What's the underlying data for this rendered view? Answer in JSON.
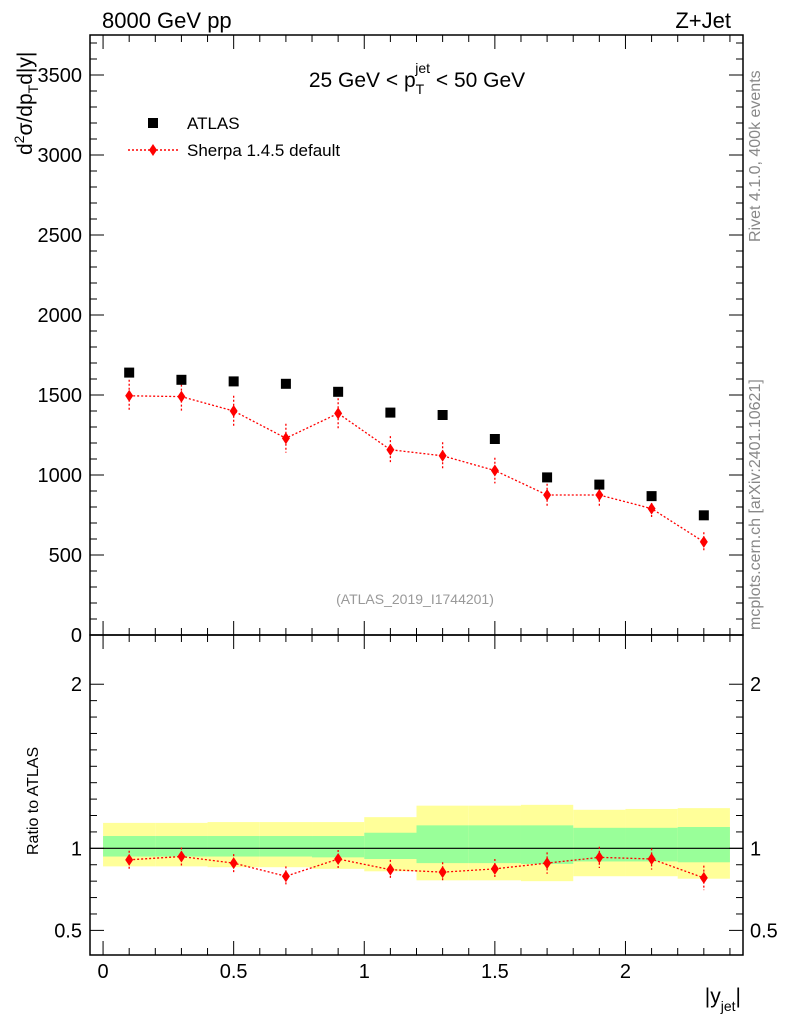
{
  "header": {
    "left_title": "8000 GeV pp",
    "right_title": "Z+Jet"
  },
  "side_labels": {
    "rivet": "Rivet 4.1.0,  400k events",
    "mcplots": "mcplots.cern.ch [arXiv:2401.10621]"
  },
  "chart_data": [
    {
      "type": "scatter",
      "panel": "main",
      "title": "25 GeV < p_T^jet < 50 GeV",
      "title_parts": {
        "pre": "25 GeV < p",
        "sub": "T",
        "sup": "jet",
        "post": " < 50 GeV"
      },
      "ylabel": "d²σ/dp_T d|y|",
      "ylabel_parts": {
        "d": "d",
        "sup2": "2",
        "sigma": "σ/dp",
        "sub": "T",
        "rest": "d|y|"
      },
      "xlabel": "|y_jet|",
      "xlim": [
        -0.05,
        2.45
      ],
      "ylim": [
        0,
        3750
      ],
      "yticks": [
        0,
        500,
        1000,
        1500,
        2000,
        2500,
        3000,
        3500
      ],
      "ytick_labels": [
        "0",
        "500",
        "1000",
        "1500",
        "2000",
        "2500",
        "3000",
        "3500"
      ],
      "watermark": "(ATLAS_2019_I1744201)",
      "legend": {
        "position": "top-left",
        "entries": [
          "ATLAS",
          "Sherpa 1.4.5 default"
        ]
      },
      "series": [
        {
          "name": "ATLAS",
          "marker": "square",
          "color": "#000000",
          "x": [
            0.1,
            0.3,
            0.5,
            0.7,
            0.9,
            1.1,
            1.3,
            1.5,
            1.7,
            1.9,
            2.1,
            2.3
          ],
          "y": [
            1640,
            1595,
            1585,
            1570,
            1520,
            1390,
            1375,
            1225,
            985,
            940,
            868,
            748
          ]
        },
        {
          "name": "Sherpa 1.4.5 default",
          "marker": "diamond",
          "line": "dotted",
          "color": "#ff0000",
          "x": [
            0.1,
            0.3,
            0.5,
            0.7,
            0.9,
            1.1,
            1.3,
            1.5,
            1.7,
            1.9,
            2.1,
            2.3
          ],
          "y": [
            1495,
            1490,
            1400,
            1230,
            1385,
            1158,
            1120,
            1028,
            875,
            875,
            790,
            582
          ],
          "yerr": [
            100,
            100,
            95,
            90,
            95,
            85,
            85,
            80,
            70,
            70,
            60,
            60
          ]
        }
      ]
    },
    {
      "type": "scatter",
      "panel": "ratio",
      "ylabel": "Ratio to ATLAS",
      "xlabel": "|y_jet|",
      "xlabel_parts": {
        "pre": "|y",
        "sub": "jet",
        "post": "|"
      },
      "xlim": [
        -0.05,
        2.45
      ],
      "ylim": [
        0.35,
        2.3
      ],
      "yticks": [
        0.5,
        1,
        2
      ],
      "ytick_labels": [
        "0.5",
        "1",
        "2"
      ],
      "xticks": [
        0,
        0.5,
        1,
        1.5,
        2
      ],
      "xtick_labels": [
        "0",
        "0.5",
        "1",
        "1.5",
        "2"
      ],
      "bands": {
        "edges": [
          0,
          0.2,
          0.4,
          0.6,
          0.8,
          1.0,
          1.2,
          1.4,
          1.6,
          1.8,
          2.0,
          2.2,
          2.4
        ],
        "yellow_lo": [
          0.89,
          0.89,
          0.885,
          0.885,
          0.875,
          0.86,
          0.805,
          0.805,
          0.8,
          0.83,
          0.83,
          0.815
        ],
        "yellow_hi": [
          1.155,
          1.155,
          1.16,
          1.16,
          1.16,
          1.19,
          1.26,
          1.26,
          1.265,
          1.235,
          1.24,
          1.245
        ],
        "green_lo": [
          0.95,
          0.95,
          0.95,
          0.95,
          0.945,
          0.935,
          0.91,
          0.91,
          0.905,
          0.92,
          0.92,
          0.915
        ],
        "green_hi": [
          1.075,
          1.075,
          1.075,
          1.075,
          1.075,
          1.095,
          1.14,
          1.14,
          1.14,
          1.125,
          1.125,
          1.13
        ]
      },
      "series": [
        {
          "name": "Sherpa 1.4.5 default / ATLAS",
          "marker": "diamond",
          "line": "dotted",
          "color": "#ff0000",
          "x": [
            0.1,
            0.3,
            0.5,
            0.7,
            0.9,
            1.1,
            1.3,
            1.5,
            1.7,
            1.9,
            2.1,
            2.3
          ],
          "y": [
            0.93,
            0.95,
            0.91,
            0.83,
            0.935,
            0.87,
            0.855,
            0.875,
            0.91,
            0.945,
            0.935,
            0.82
          ],
          "yerr": [
            0.055,
            0.055,
            0.055,
            0.06,
            0.055,
            0.06,
            0.06,
            0.06,
            0.065,
            0.065,
            0.065,
            0.075
          ]
        }
      ]
    }
  ]
}
